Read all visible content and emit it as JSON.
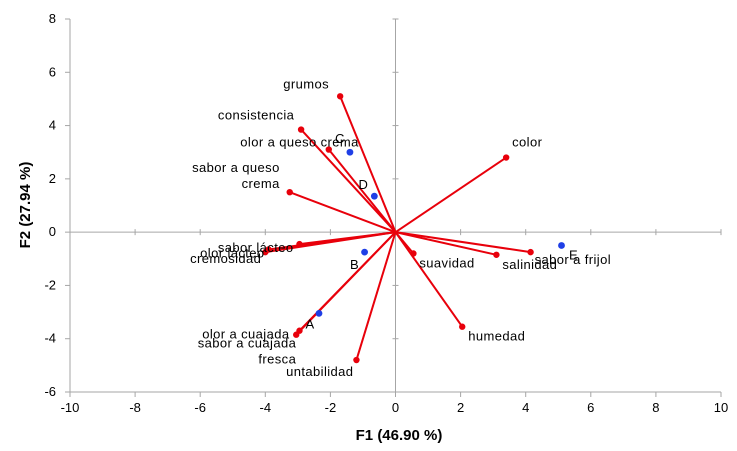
{
  "chart_data": {
    "type": "scatter",
    "subtype": "biplot",
    "xlabel": "F1 (46.90 %)",
    "ylabel": "F2 (27.94 %)",
    "xlim": [
      -10,
      10
    ],
    "ylim": [
      -6,
      8
    ],
    "x_ticks": [
      -10,
      -8,
      -6,
      -4,
      -2,
      0,
      2,
      4,
      6,
      8,
      10
    ],
    "y_ticks": [
      -6,
      -4,
      -2,
      0,
      2,
      4,
      6,
      8
    ],
    "grid": false,
    "zero_lines": true,
    "colors": {
      "variables": "#e8000b",
      "observations": "#1f3fe6",
      "axes": "#a6a6a6"
    },
    "series": [
      {
        "role": "variables",
        "points": [
          {
            "label": "grumos",
            "x": -1.7,
            "y": 5.1
          },
          {
            "label": "consistencia",
            "x": -2.9,
            "y": 3.85
          },
          {
            "label": "olor a queso crema",
            "x": -2.05,
            "y": 3.1
          },
          {
            "label": "sabor a queso crema",
            "x": -3.25,
            "y": 1.5
          },
          {
            "label": "color",
            "x": 3.4,
            "y": 2.8
          },
          {
            "label": "sabor lácteo",
            "x": -2.95,
            "y": -0.45
          },
          {
            "label": "olor lácteo",
            "x": -3.9,
            "y": -0.65
          },
          {
            "label": "cremosidad",
            "x": -4.0,
            "y": -0.75
          },
          {
            "label": "suavidad",
            "x": 0.55,
            "y": -0.8
          },
          {
            "label": "salinidad",
            "x": 3.1,
            "y": -0.85
          },
          {
            "label": "sabor a frijol",
            "x": 4.15,
            "y": -0.75
          },
          {
            "label": "humedad",
            "x": 2.05,
            "y": -3.55
          },
          {
            "label": "olor a cuajada",
            "x": -2.95,
            "y": -3.7
          },
          {
            "label": "sabor a cuajada fresca",
            "x": -3.05,
            "y": -3.85
          },
          {
            "label": "untabilidad",
            "x": -1.2,
            "y": -4.8
          }
        ]
      },
      {
        "role": "observations",
        "points": [
          {
            "label": "A",
            "x": -2.35,
            "y": -3.05
          },
          {
            "label": "B",
            "x": -0.95,
            "y": -0.75
          },
          {
            "label": "C",
            "x": -1.4,
            "y": 3.0
          },
          {
            "label": "D",
            "x": -0.65,
            "y": 1.35
          },
          {
            "label": "E",
            "x": 5.1,
            "y": -0.5
          }
        ]
      }
    ],
    "label_text": {
      "grumos": [
        "grumos"
      ],
      "consistencia": [
        "consistencia"
      ],
      "olor a queso crema": [
        "olor a queso crema"
      ],
      "sabor a queso crema": [
        "sabor a queso",
        "crema"
      ],
      "color": [
        "color"
      ],
      "sabor lácteo": [
        "sabor lácteo"
      ],
      "olor lácteo": [
        "olor lácteo"
      ],
      "cremosidad": [
        "cremosidad"
      ],
      "suavidad": [
        "suavidad"
      ],
      "salinidad": [
        "salinidad"
      ],
      "sabor a frijol": [
        "sabor a frijol"
      ],
      "humedad": [
        "humedad"
      ],
      "olor a cuajada": [
        "olor a cuajada"
      ],
      "sabor a cuajada fresca": [
        "sabor a cuajada",
        "fresca"
      ],
      "untabilidad": [
        "untabilidad"
      ],
      "A": [
        "A"
      ],
      "B": [
        "B"
      ],
      "C": [
        "C"
      ],
      "D": [
        "D"
      ],
      "E": [
        "E"
      ]
    }
  }
}
